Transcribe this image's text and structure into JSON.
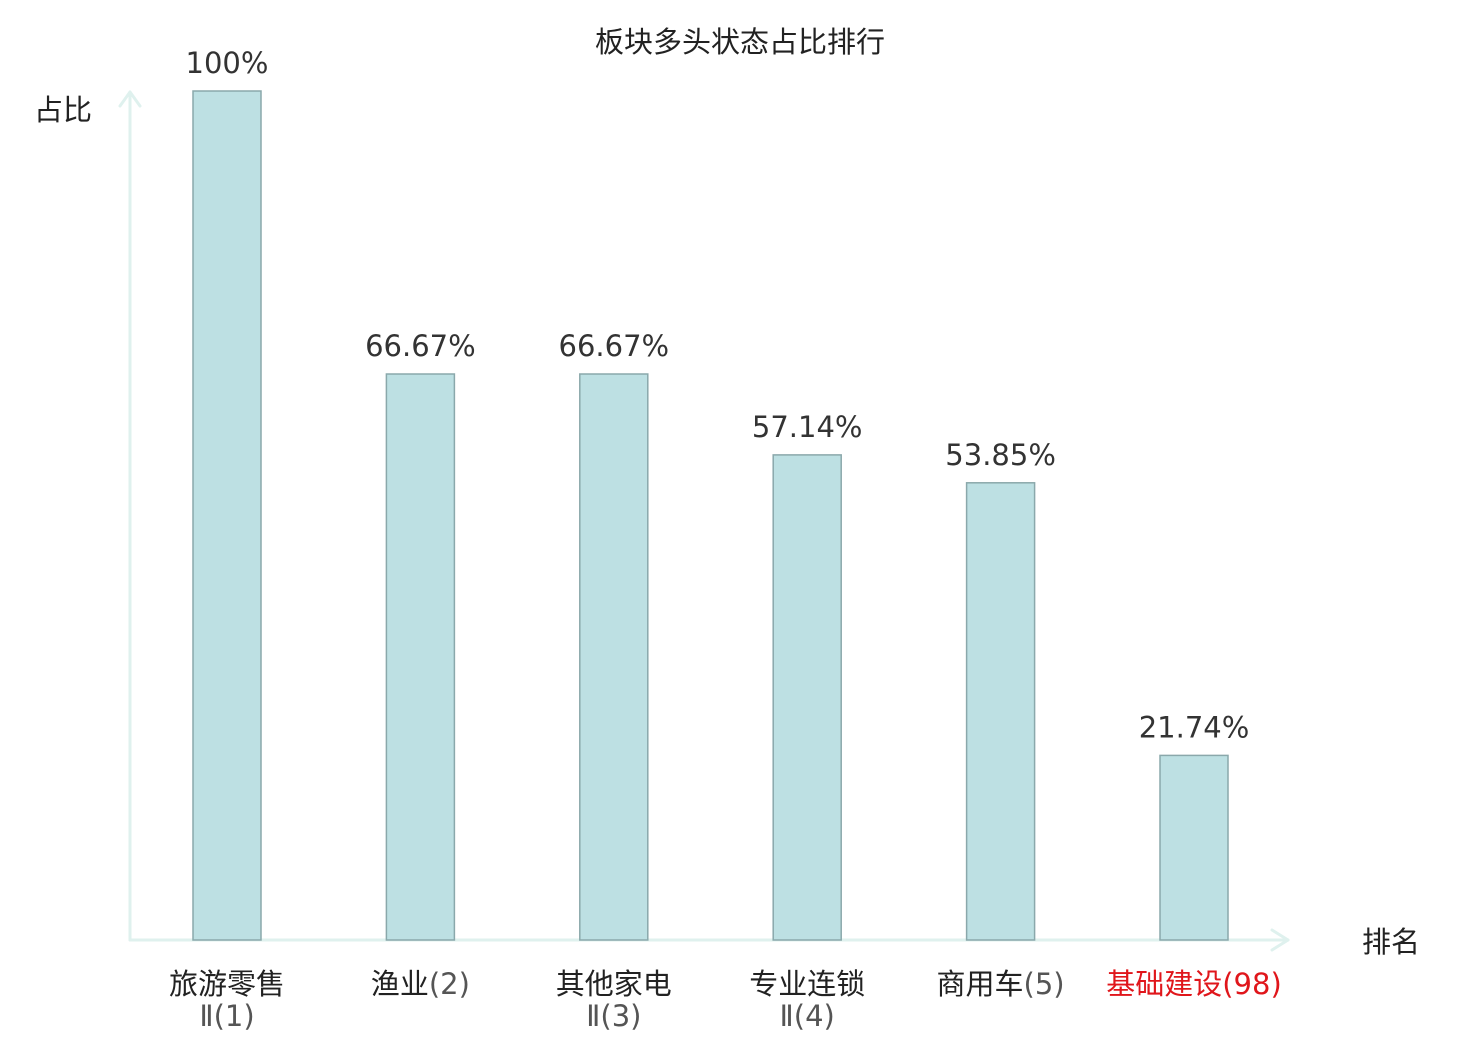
{
  "chart_data": {
    "type": "bar",
    "title": "板块多头状态占比排行",
    "ylabel": "占比",
    "xlabel": "排名",
    "ylim": [
      0,
      100
    ],
    "grid": false,
    "legend": "none",
    "bar_color": "#bde0e3",
    "bar_border_color": "#8aa8ab",
    "axis_color": "#dff1ee",
    "highlight_color": "#e0161b",
    "categories": [
      {
        "name_lines": [
          "旅游零售",
          "Ⅱ"
        ],
        "rank": "(1)",
        "highlight": false
      },
      {
        "name_lines": [
          "渔业"
        ],
        "rank": "(2)",
        "highlight": false
      },
      {
        "name_lines": [
          "其他家电",
          "Ⅱ"
        ],
        "rank": "(3)",
        "highlight": false
      },
      {
        "name_lines": [
          "专业连锁",
          "Ⅱ"
        ],
        "rank": "(4)",
        "highlight": false
      },
      {
        "name_lines": [
          "商用车"
        ],
        "rank": "(5)",
        "highlight": false
      },
      {
        "name_lines": [
          "基础建设"
        ],
        "rank": "(98)",
        "highlight": true
      }
    ],
    "values": [
      100,
      66.67,
      66.67,
      57.14,
      53.85,
      21.74
    ],
    "value_labels": [
      "100%",
      "66.67%",
      "66.67%",
      "57.14%",
      "53.85%",
      "21.74%"
    ]
  }
}
